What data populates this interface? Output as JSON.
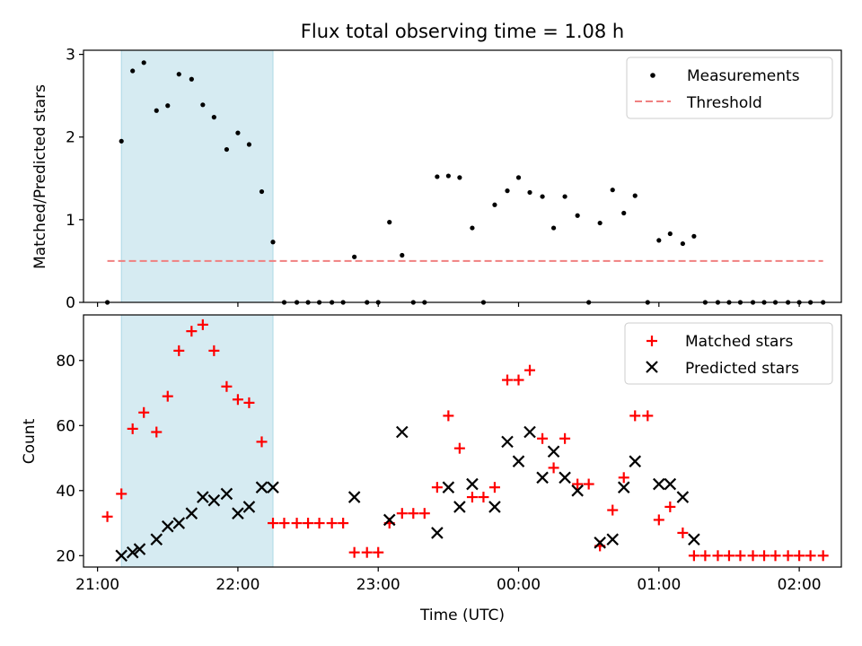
{
  "chart_data": [
    {
      "type": "scatter",
      "title": "Flux total observing time = 1.08 h",
      "xlabel": "",
      "ylabel": "Matched/Predicted stars",
      "ylim": [
        0,
        3.05
      ],
      "yticks": [
        0,
        1,
        2,
        3
      ],
      "xlim_hours": [
        20.9,
        26.3
      ],
      "shaded_interval_hours": [
        21.17,
        22.25
      ],
      "shade_color": "#add8e6",
      "legend_position": "upper right",
      "series": [
        {
          "name": "Measurements",
          "color": "#000000",
          "marker": "dot",
          "x": [
            21.07,
            21.17,
            21.25,
            21.33,
            21.42,
            21.5,
            21.58,
            21.67,
            21.75,
            21.83,
            21.92,
            22.0,
            22.08,
            22.17,
            22.25,
            22.33,
            22.42,
            22.5,
            22.58,
            22.67,
            22.75,
            22.83,
            22.92,
            23.0,
            23.08,
            23.17,
            23.25,
            23.33,
            23.42,
            23.5,
            23.58,
            23.67,
            23.75,
            23.83,
            23.92,
            24.0,
            24.08,
            24.17,
            24.25,
            24.33,
            24.42,
            24.5,
            24.58,
            24.67,
            24.75,
            24.83,
            24.92,
            25.0,
            25.08,
            25.17,
            25.25,
            25.33,
            25.42,
            25.5,
            25.58,
            25.67,
            25.75,
            25.83,
            25.92,
            26.0,
            26.08,
            26.17
          ],
          "y": [
            0,
            1.95,
            2.8,
            2.9,
            2.32,
            2.38,
            2.76,
            2.7,
            2.39,
            2.24,
            1.85,
            2.05,
            1.91,
            1.34,
            0.73,
            0,
            0,
            0,
            0,
            0,
            0,
            0.55,
            0,
            0,
            0.97,
            0.57,
            0,
            0,
            1.52,
            1.53,
            1.51,
            0.9,
            0,
            1.18,
            1.35,
            1.51,
            1.33,
            1.28,
            0.9,
            1.28,
            1.05,
            0,
            0.96,
            1.36,
            1.08,
            1.29,
            0,
            0.75,
            0.83,
            0.71,
            0.8,
            0,
            0,
            0,
            0,
            0,
            0,
            0,
            0,
            0,
            0,
            0
          ]
        },
        {
          "name": "Threshold",
          "color": "#f08080",
          "style": "dashed",
          "x": [
            21.07,
            26.17
          ],
          "y": [
            0.5,
            0.5
          ]
        }
      ]
    },
    {
      "type": "scatter",
      "title": "",
      "xlabel": "Time (UTC)",
      "ylabel": "Count",
      "ylim": [
        16.5,
        94
      ],
      "yticks": [
        20,
        40,
        60,
        80
      ],
      "xlim_hours": [
        20.9,
        26.3
      ],
      "xticks_hours": [
        21,
        22,
        23,
        24,
        25,
        26
      ],
      "xtick_labels": [
        "21:00",
        "22:00",
        "23:00",
        "00:00",
        "01:00",
        "02:00"
      ],
      "shaded_interval_hours": [
        21.17,
        22.25
      ],
      "shade_color": "#add8e6",
      "legend_position": "upper right",
      "series": [
        {
          "name": "Matched stars",
          "color": "#ff0000",
          "marker": "plus",
          "x": [
            21.07,
            21.17,
            21.25,
            21.33,
            21.42,
            21.5,
            21.58,
            21.67,
            21.75,
            21.83,
            21.92,
            22.0,
            22.08,
            22.17,
            22.25,
            22.33,
            22.42,
            22.5,
            22.58,
            22.67,
            22.75,
            22.83,
            22.92,
            23.0,
            23.08,
            23.17,
            23.25,
            23.33,
            23.42,
            23.5,
            23.58,
            23.67,
            23.75,
            23.83,
            23.92,
            24.0,
            24.08,
            24.17,
            24.25,
            24.33,
            24.42,
            24.5,
            24.58,
            24.67,
            24.75,
            24.83,
            24.92,
            25.0,
            25.08,
            25.17,
            25.25,
            25.33,
            25.42,
            25.5,
            25.58,
            25.67,
            25.75,
            25.83,
            25.92,
            26.0,
            26.08,
            26.17
          ],
          "y": [
            32,
            39,
            59,
            64,
            58,
            69,
            83,
            89,
            91,
            83,
            72,
            68,
            67,
            55,
            30,
            30,
            30,
            30,
            30,
            30,
            30,
            21,
            21,
            21,
            30,
            33,
            33,
            33,
            41,
            63,
            53,
            38,
            38,
            41,
            74,
            74,
            77,
            56,
            47,
            56,
            42,
            42,
            23,
            34,
            44,
            63,
            63,
            31,
            35,
            27,
            20,
            20,
            20,
            20,
            20,
            20,
            20,
            20,
            20,
            20,
            20,
            20
          ]
        },
        {
          "name": "Predicted stars",
          "color": "#000000",
          "marker": "x",
          "x": [
            21.17,
            21.25,
            21.3,
            21.42,
            21.5,
            21.58,
            21.67,
            21.75,
            21.83,
            21.92,
            22.0,
            22.08,
            22.17,
            22.25,
            22.83,
            23.08,
            23.17,
            23.42,
            23.5,
            23.58,
            23.67,
            23.83,
            23.92,
            24.0,
            24.08,
            24.17,
            24.25,
            24.33,
            24.42,
            24.58,
            24.67,
            24.75,
            24.83,
            25.0,
            25.08,
            25.17,
            25.25
          ],
          "y": [
            20,
            21,
            22,
            25,
            29,
            30,
            33,
            38,
            37,
            39,
            33,
            35,
            41,
            41,
            38,
            31,
            58,
            27,
            41,
            35,
            42,
            35,
            55,
            49,
            58,
            44,
            52,
            44,
            40,
            24,
            25,
            41,
            49,
            42,
            42,
            38,
            25
          ]
        }
      ]
    }
  ]
}
